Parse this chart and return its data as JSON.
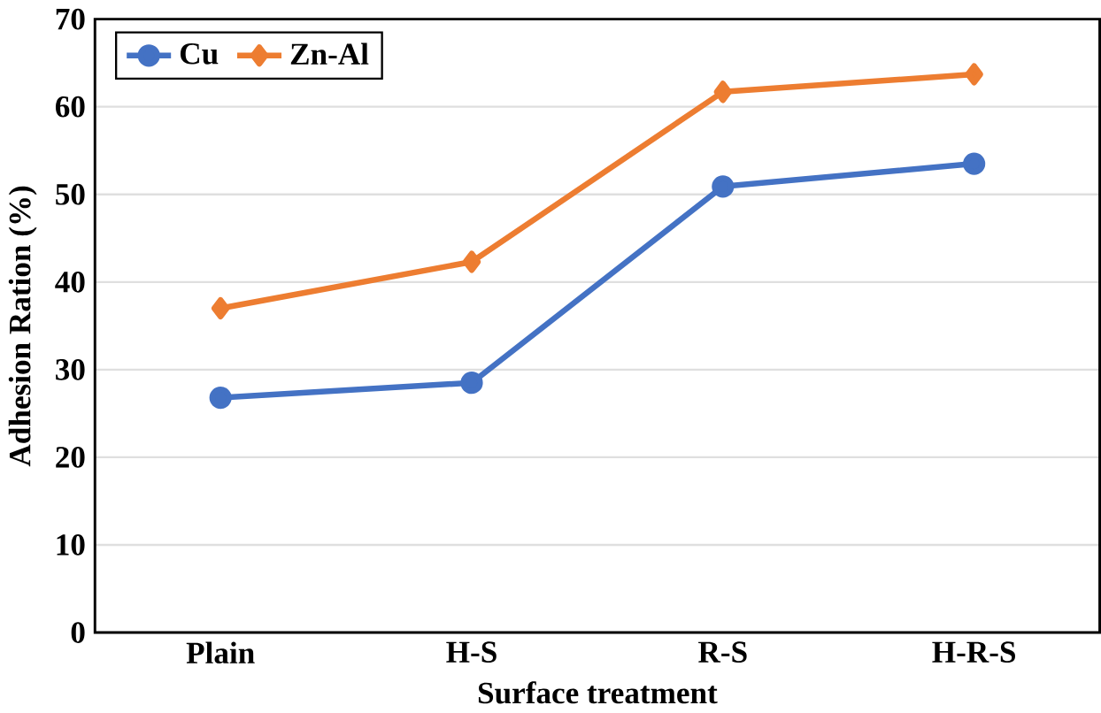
{
  "chart_data": {
    "type": "line",
    "xlabel": "Surface treatment",
    "ylabel": "Adhesion Ration (%)",
    "categories": [
      "Plain",
      "H-S",
      "R-S",
      "H-R-S"
    ],
    "series": [
      {
        "name": "Cu",
        "color": "#4472c4",
        "marker": "circle",
        "values": [
          26.8,
          28.5,
          50.9,
          53.5
        ]
      },
      {
        "name": "Zn-Al",
        "color": "#ed7d31",
        "marker": "diamond",
        "values": [
          37.0,
          42.3,
          61.7,
          63.7
        ]
      }
    ],
    "ylim": [
      0,
      70
    ],
    "yticks": [
      0,
      10,
      20,
      30,
      40,
      50,
      60,
      70
    ],
    "grid": "y",
    "legend": "top left"
  }
}
